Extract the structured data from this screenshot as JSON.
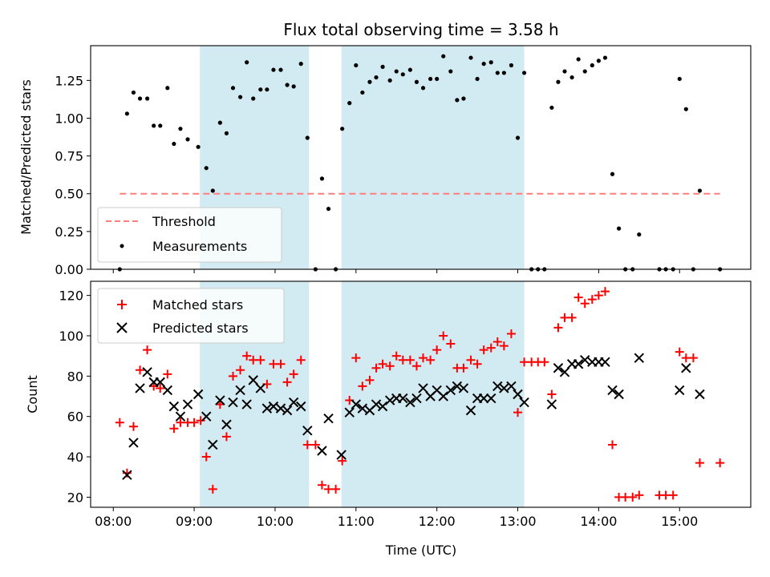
{
  "chart_data": [
    {
      "type": "scatter",
      "title": "Flux total observing time = 3.58 h",
      "xlabel": "",
      "ylabel": "Matched/Predicted stars",
      "xlim": [
        7.72,
        15.88
      ],
      "ylim": [
        0,
        1.48
      ],
      "yticks": [
        0.0,
        0.25,
        0.5,
        0.75,
        1.0,
        1.25
      ],
      "ytick_labels": [
        "0.00",
        "0.25",
        "0.50",
        "0.75",
        "1.00",
        "1.25"
      ],
      "xticks": [
        8,
        9,
        10,
        11,
        12,
        13,
        14,
        15
      ],
      "shaded_spans": [
        [
          9.07,
          10.42
        ],
        [
          10.82,
          13.08
        ]
      ],
      "shade_color": "#add8e6",
      "threshold": {
        "name": "Threshold",
        "y": 0.5,
        "x_range": [
          8.08,
          15.5
        ],
        "color": "#ff7f7f"
      },
      "legend": {
        "location": "lower left",
        "entries": [
          "Threshold",
          "Measurements"
        ]
      },
      "series": [
        {
          "name": "Measurements",
          "color": "#000000",
          "x": [
            8.08,
            8.17,
            8.25,
            8.33,
            8.42,
            8.5,
            8.58,
            8.67,
            8.75,
            8.83,
            8.92,
            9.05,
            9.15,
            9.23,
            9.32,
            9.4,
            9.48,
            9.57,
            9.65,
            9.73,
            9.82,
            9.9,
            9.98,
            10.07,
            10.15,
            10.23,
            10.32,
            10.4,
            10.5,
            10.58,
            10.66,
            10.75,
            10.83,
            10.92,
            11.0,
            11.08,
            11.17,
            11.25,
            11.33,
            11.42,
            11.5,
            11.58,
            11.67,
            11.75,
            11.83,
            11.92,
            12.0,
            12.08,
            12.17,
            12.25,
            12.33,
            12.42,
            12.5,
            12.58,
            12.67,
            12.75,
            12.83,
            12.92,
            13.0,
            13.08,
            13.17,
            13.25,
            13.33,
            13.42,
            13.5,
            13.58,
            13.67,
            13.75,
            13.83,
            13.92,
            14.0,
            14.08,
            14.17,
            14.25,
            14.33,
            14.42,
            14.5,
            14.75,
            14.83,
            14.92,
            15.0,
            15.08,
            15.17,
            15.25,
            15.5
          ],
          "y": [
            0.0,
            1.03,
            1.17,
            1.13,
            1.13,
            0.95,
            0.95,
            1.2,
            0.83,
            0.93,
            0.86,
            0.81,
            0.67,
            0.52,
            0.97,
            0.9,
            1.2,
            1.14,
            1.37,
            1.13,
            1.19,
            1.19,
            1.32,
            1.32,
            1.22,
            1.21,
            1.36,
            0.87,
            0.0,
            0.6,
            0.4,
            0.0,
            0.93,
            1.1,
            1.35,
            1.17,
            1.24,
            1.27,
            1.34,
            1.25,
            1.31,
            1.29,
            1.32,
            1.24,
            1.2,
            1.26,
            1.26,
            1.41,
            1.31,
            1.12,
            1.13,
            1.4,
            1.26,
            1.36,
            1.37,
            1.3,
            1.3,
            1.35,
            0.87,
            1.3,
            0.0,
            0.0,
            0.0,
            1.07,
            1.24,
            1.31,
            1.27,
            1.39,
            1.31,
            1.35,
            1.38,
            1.4,
            0.63,
            0.27,
            0.0,
            0.0,
            0.23,
            0.0,
            0.0,
            0.0,
            1.26,
            1.06,
            0.0,
            0.52,
            0.0
          ]
        }
      ]
    },
    {
      "type": "scatter",
      "title": "",
      "xlabel": "Time (UTC)",
      "ylabel": "Count",
      "xlim": [
        7.72,
        15.88
      ],
      "ylim": [
        15,
        127
      ],
      "yticks": [
        20,
        40,
        60,
        80,
        100,
        120
      ],
      "ytick_labels": [
        "20",
        "40",
        "60",
        "80",
        "100",
        "120"
      ],
      "xticks": [
        8,
        9,
        10,
        11,
        12,
        13,
        14,
        15
      ],
      "xtick_labels": [
        "08:00",
        "09:00",
        "10:00",
        "11:00",
        "12:00",
        "13:00",
        "14:00",
        "15:00"
      ],
      "shaded_spans": [
        [
          9.07,
          10.42
        ],
        [
          10.82,
          13.08
        ]
      ],
      "shade_color": "#add8e6",
      "legend": {
        "location": "upper left",
        "entries": [
          "Matched stars",
          "Predicted stars"
        ]
      },
      "series": [
        {
          "name": "Matched stars",
          "color": "#ff0000",
          "marker": "+",
          "x": [
            8.08,
            8.17,
            8.25,
            8.33,
            8.42,
            8.5,
            8.58,
            8.67,
            8.75,
            8.83,
            8.92,
            9.0,
            9.08,
            9.15,
            9.23,
            9.32,
            9.4,
            9.48,
            9.57,
            9.65,
            9.73,
            9.82,
            9.9,
            9.98,
            10.07,
            10.15,
            10.23,
            10.32,
            10.4,
            10.5,
            10.58,
            10.66,
            10.75,
            10.83,
            10.92,
            11.0,
            11.08,
            11.17,
            11.25,
            11.33,
            11.42,
            11.5,
            11.58,
            11.67,
            11.75,
            11.83,
            11.92,
            12.0,
            12.08,
            12.17,
            12.25,
            12.33,
            12.42,
            12.5,
            12.58,
            12.67,
            12.75,
            12.83,
            12.92,
            13.0,
            13.08,
            13.17,
            13.25,
            13.33,
            13.42,
            13.5,
            13.58,
            13.67,
            13.75,
            13.83,
            13.92,
            14.0,
            14.08,
            14.17,
            14.25,
            14.33,
            14.42,
            14.5,
            14.75,
            14.83,
            14.92,
            15.0,
            15.08,
            15.17,
            15.25,
            15.5
          ],
          "y": [
            57,
            32,
            55,
            83,
            93,
            75,
            74,
            81,
            54,
            57,
            57,
            57,
            58,
            40,
            24,
            66,
            50,
            80,
            83,
            90,
            88,
            88,
            76,
            86,
            86,
            77,
            81,
            88,
            46,
            46,
            26,
            24,
            24,
            38,
            68,
            89,
            75,
            78,
            84,
            86,
            85,
            90,
            88,
            88,
            85,
            89,
            88,
            93,
            100,
            96,
            84,
            84,
            88,
            86,
            93,
            94,
            97,
            95,
            101,
            62,
            87,
            87,
            87,
            87,
            71,
            104,
            109,
            109,
            119,
            116,
            118,
            120,
            122,
            46,
            20,
            20,
            20,
            21,
            21,
            21,
            21,
            92,
            89,
            89,
            37,
            37
          ]
        },
        {
          "name": "Predicted stars",
          "color": "#000000",
          "marker": "x",
          "x": [
            8.17,
            8.25,
            8.33,
            8.42,
            8.5,
            8.58,
            8.67,
            8.75,
            8.83,
            8.92,
            9.05,
            9.15,
            9.23,
            9.32,
            9.4,
            9.48,
            9.57,
            9.65,
            9.73,
            9.82,
            9.9,
            9.98,
            10.07,
            10.15,
            10.23,
            10.32,
            10.4,
            10.58,
            10.66,
            10.82,
            10.92,
            11.0,
            11.08,
            11.17,
            11.25,
            11.33,
            11.42,
            11.5,
            11.58,
            11.67,
            11.75,
            11.83,
            11.92,
            12.0,
            12.08,
            12.17,
            12.25,
            12.33,
            12.42,
            12.5,
            12.58,
            12.67,
            12.75,
            12.83,
            12.92,
            13.0,
            13.08,
            13.42,
            13.5,
            13.58,
            13.67,
            13.75,
            13.83,
            13.92,
            14.0,
            14.08,
            14.17,
            14.25,
            14.5,
            15.0,
            15.08,
            15.25
          ],
          "y": [
            31,
            47,
            74,
            82,
            77,
            77,
            73,
            65,
            60,
            66,
            71,
            60,
            46,
            68,
            56,
            67,
            73,
            66,
            78,
            74,
            64,
            65,
            64,
            63,
            67,
            65,
            53,
            43,
            59,
            41,
            62,
            66,
            64,
            63,
            66,
            65,
            68,
            69,
            69,
            67,
            69,
            74,
            70,
            73,
            70,
            73,
            75,
            74,
            63,
            69,
            69,
            69,
            75,
            74,
            75,
            71,
            67,
            66,
            84,
            82,
            86,
            86,
            88,
            87,
            87,
            87,
            73,
            71,
            89,
            73,
            84,
            71
          ]
        }
      ]
    }
  ]
}
